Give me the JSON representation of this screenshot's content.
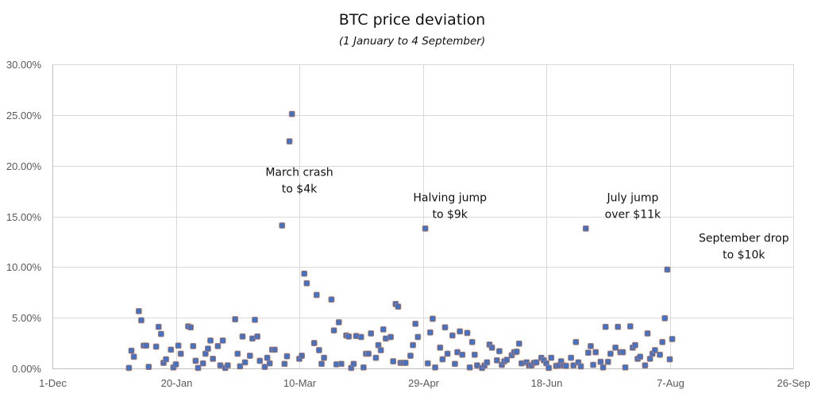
{
  "chart_data": {
    "type": "scatter",
    "title": "BTC price deviation",
    "subtitle": "(1 January to 4 September)",
    "xlabel": "",
    "ylabel": "",
    "x_units": "days since 1-Dec",
    "xlim": [
      0,
      300
    ],
    "ylim": [
      0,
      30
    ],
    "x_ticks": [
      {
        "day": 0,
        "label": "1-Dec"
      },
      {
        "day": 50,
        "label": "20-Jan"
      },
      {
        "day": 100,
        "label": "10-Mar"
      },
      {
        "day": 150,
        "label": "29-Apr"
      },
      {
        "day": 200,
        "label": "18-Jun"
      },
      {
        "day": 250,
        "label": "7-Aug"
      },
      {
        "day": 300,
        "label": "26-Sep"
      }
    ],
    "y_ticks": [
      {
        "value": 0,
        "label": "0.00%"
      },
      {
        "value": 5,
        "label": "5.00%"
      },
      {
        "value": 10,
        "label": "10.00%"
      },
      {
        "value": 15,
        "label": "15.00%"
      },
      {
        "value": 20,
        "label": "20.00%"
      },
      {
        "value": 25,
        "label": "25.00%"
      },
      {
        "value": 30,
        "label": "30.00%"
      }
    ],
    "grid": true,
    "legend": "none",
    "marker_color": "#4472c4",
    "marker_edge_color": "#ed7d31",
    "annotations": [
      {
        "lines": [
          "March crash",
          "to $4k"
        ],
        "day": 100,
        "value": 19.0
      },
      {
        "lines": [
          "Halving jump",
          "to $9k"
        ],
        "day": 161,
        "value": 16.5
      },
      {
        "lines": [
          "July jump",
          "over $11k"
        ],
        "day": 235,
        "value": 16.5
      },
      {
        "lines": [
          "September drop",
          "to $10k"
        ],
        "day": 280,
        "value": 12.5
      }
    ],
    "series": [
      {
        "name": "BTC price deviation",
        "points": [
          [
            31,
            0.05
          ],
          [
            32,
            1.75
          ],
          [
            33,
            1.15
          ],
          [
            35,
            5.65
          ],
          [
            36,
            4.75
          ],
          [
            37,
            2.25
          ],
          [
            38,
            2.25
          ],
          [
            39,
            0.15
          ],
          [
            42,
            2.15
          ],
          [
            43,
            4.1
          ],
          [
            44,
            3.4
          ],
          [
            45,
            0.55
          ],
          [
            46,
            0.9
          ],
          [
            48,
            1.85
          ],
          [
            49,
            0.1
          ],
          [
            50,
            0.4
          ],
          [
            51,
            2.25
          ],
          [
            52,
            1.45
          ],
          [
            55,
            4.15
          ],
          [
            56,
            4.05
          ],
          [
            57,
            2.2
          ],
          [
            58,
            0.75
          ],
          [
            59,
            0.05
          ],
          [
            61,
            0.5
          ],
          [
            62,
            1.45
          ],
          [
            63,
            1.95
          ],
          [
            64,
            2.75
          ],
          [
            65,
            0.95
          ],
          [
            67,
            2.2
          ],
          [
            68,
            0.3
          ],
          [
            69,
            2.75
          ],
          [
            70,
            0.05
          ],
          [
            71,
            0.3
          ],
          [
            74,
            4.85
          ],
          [
            75,
            1.45
          ],
          [
            76,
            0.2
          ],
          [
            77,
            3.15
          ],
          [
            78,
            0.6
          ],
          [
            80,
            1.25
          ],
          [
            81,
            2.95
          ],
          [
            82,
            4.8
          ],
          [
            83,
            3.15
          ],
          [
            84,
            0.75
          ],
          [
            86,
            0.15
          ],
          [
            87,
            1.05
          ],
          [
            88,
            0.5
          ],
          [
            89,
            1.85
          ],
          [
            90,
            1.85
          ],
          [
            93,
            14.1
          ],
          [
            94,
            0.45
          ],
          [
            95,
            1.2
          ],
          [
            96,
            22.4
          ],
          [
            97,
            25.1
          ],
          [
            100,
            0.95
          ],
          [
            101,
            1.25
          ],
          [
            102,
            9.35
          ],
          [
            103,
            8.4
          ],
          [
            106,
            2.5
          ],
          [
            107,
            7.25
          ],
          [
            108,
            1.8
          ],
          [
            109,
            0.45
          ],
          [
            110,
            1.05
          ],
          [
            113,
            6.8
          ],
          [
            114,
            3.75
          ],
          [
            115,
            0.4
          ],
          [
            116,
            4.55
          ],
          [
            117,
            0.45
          ],
          [
            119,
            3.25
          ],
          [
            120,
            3.15
          ],
          [
            121,
            0.05
          ],
          [
            122,
            0.45
          ],
          [
            123,
            3.2
          ],
          [
            125,
            3.1
          ],
          [
            126,
            0.1
          ],
          [
            127,
            1.45
          ],
          [
            128,
            1.45
          ],
          [
            129,
            3.45
          ],
          [
            131,
            1.05
          ],
          [
            132,
            2.3
          ],
          [
            133,
            1.8
          ],
          [
            134,
            3.85
          ],
          [
            135,
            2.95
          ],
          [
            137,
            3.1
          ],
          [
            138,
            0.7
          ],
          [
            139,
            6.35
          ],
          [
            140,
            6.1
          ],
          [
            141,
            0.55
          ],
          [
            142,
            0.55
          ],
          [
            143,
            0.55
          ],
          [
            145,
            1.25
          ],
          [
            146,
            2.3
          ],
          [
            147,
            4.4
          ],
          [
            148,
            3.1
          ],
          [
            151,
            13.8
          ],
          [
            152,
            0.5
          ],
          [
            153,
            3.55
          ],
          [
            154,
            4.9
          ],
          [
            155,
            0.1
          ],
          [
            157,
            2.05
          ],
          [
            158,
            0.9
          ],
          [
            159,
            4.05
          ],
          [
            160,
            1.45
          ],
          [
            162,
            3.25
          ],
          [
            163,
            0.45
          ],
          [
            164,
            1.6
          ],
          [
            165,
            3.65
          ],
          [
            166,
            1.35
          ],
          [
            168,
            3.5
          ],
          [
            169,
            0.1
          ],
          [
            170,
            2.6
          ],
          [
            171,
            1.35
          ],
          [
            172,
            0.3
          ],
          [
            174,
            0.05
          ],
          [
            175,
            0.3
          ],
          [
            176,
            0.6
          ],
          [
            177,
            2.35
          ],
          [
            178,
            2.05
          ],
          [
            180,
            0.8
          ],
          [
            181,
            1.7
          ],
          [
            182,
            0.35
          ],
          [
            183,
            0.7
          ],
          [
            184,
            0.85
          ],
          [
            186,
            1.3
          ],
          [
            187,
            1.6
          ],
          [
            188,
            1.65
          ],
          [
            189,
            2.45
          ],
          [
            190,
            0.5
          ],
          [
            192,
            0.6
          ],
          [
            193,
            0.3
          ],
          [
            194,
            0.3
          ],
          [
            195,
            0.55
          ],
          [
            196,
            0.6
          ],
          [
            198,
            1.05
          ],
          [
            199,
            0.8
          ],
          [
            200,
            0.5
          ],
          [
            201,
            0.05
          ],
          [
            202,
            1.05
          ],
          [
            204,
            0.25
          ],
          [
            205,
            0.3
          ],
          [
            206,
            0.7
          ],
          [
            207,
            0.3
          ],
          [
            208,
            0.25
          ],
          [
            210,
            1.05
          ],
          [
            211,
            0.3
          ],
          [
            212,
            2.6
          ],
          [
            213,
            0.6
          ],
          [
            214,
            0.2
          ],
          [
            216,
            13.8
          ],
          [
            217,
            1.55
          ],
          [
            218,
            2.2
          ],
          [
            219,
            0.35
          ],
          [
            220,
            1.6
          ],
          [
            222,
            0.65
          ],
          [
            223,
            0.1
          ],
          [
            224,
            4.1
          ],
          [
            225,
            0.65
          ],
          [
            226,
            1.45
          ],
          [
            228,
            2.05
          ],
          [
            229,
            4.1
          ],
          [
            230,
            1.6
          ],
          [
            231,
            1.6
          ],
          [
            232,
            0.1
          ],
          [
            234,
            4.15
          ],
          [
            235,
            2.05
          ],
          [
            236,
            2.3
          ],
          [
            237,
            0.95
          ],
          [
            238,
            1.15
          ],
          [
            240,
            0.3
          ],
          [
            241,
            3.45
          ],
          [
            242,
            0.95
          ],
          [
            243,
            1.45
          ],
          [
            244,
            1.8
          ],
          [
            246,
            1.35
          ],
          [
            247,
            2.6
          ],
          [
            248,
            4.95
          ],
          [
            249,
            9.75
          ],
          [
            250,
            0.9
          ],
          [
            251,
            2.9
          ]
        ]
      }
    ]
  }
}
